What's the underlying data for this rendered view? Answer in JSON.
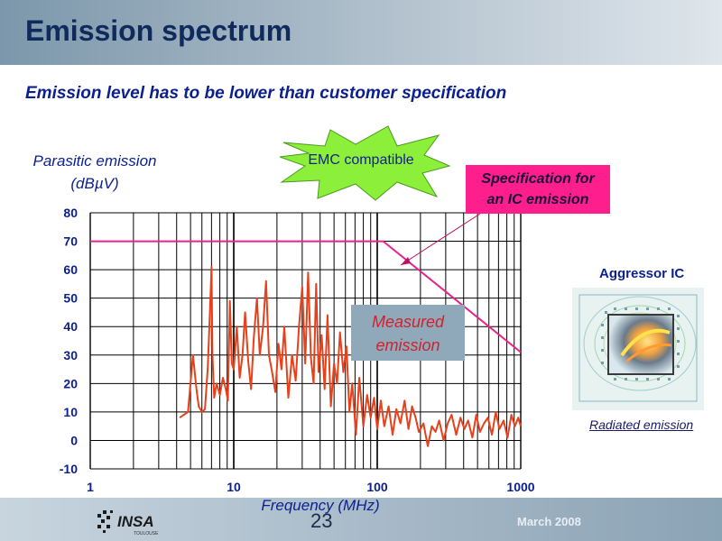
{
  "slide": {
    "title": "Emission spectrum",
    "subtitle": "Emission level has to be lower than customer specification",
    "page_number": "23",
    "date": "March 2008",
    "logo_text": "INSA",
    "logo_subtext": "TOULOUSE"
  },
  "annotations": {
    "emc_label": "EMC compatible",
    "spec_line1": "Specification for",
    "spec_line2": "an IC  emission",
    "measured_line1": "Measured",
    "measured_line2": "emission",
    "aggressor_title": "Aggressor IC",
    "radiated_label": "Radiated emission"
  },
  "colors": {
    "spec_line": "#e8238c",
    "measured_line": "#e8401a",
    "spec_box": "#ff1f8c",
    "measured_box": "#8fa9bb",
    "burst": "#8cf03a"
  },
  "chart_data": {
    "type": "line",
    "xlabel": "Frequency (MHz)",
    "ylabel_line1": "Parasitic emission",
    "ylabel_line2": "(dBµV)",
    "x_scale": "log",
    "xlim": [
      1,
      1000
    ],
    "ylim": [
      -10,
      80
    ],
    "x_ticks": [
      {
        "value": 1,
        "label": "1"
      },
      {
        "value": 10,
        "label": "10"
      },
      {
        "value": 100,
        "label": "100"
      },
      {
        "value": 1000,
        "label": "1000"
      }
    ],
    "y_ticks": [
      80,
      70,
      60,
      50,
      40,
      30,
      20,
      10,
      0,
      -10
    ],
    "grid": true,
    "series": [
      {
        "name": "Specification for an IC  emission",
        "x": [
          1,
          110,
          1000
        ],
        "y": [
          70,
          70,
          31
        ]
      },
      {
        "name": "Measured emission",
        "x": [
          4.2,
          4.8,
          5.2,
          5.5,
          5.7,
          6.0,
          6.3,
          6.6,
          6.9,
          7.0,
          7.1,
          7.3,
          7.6,
          8.0,
          8.4,
          8.8,
          9.1,
          9.4,
          9.7,
          10.0,
          10.5,
          11.0,
          11.5,
          12.0,
          12.6,
          13.2,
          13.8,
          14.5,
          15.2,
          16.0,
          16.8,
          17.6,
          18.5,
          19.5,
          20.5,
          21.5,
          22.5,
          24.0,
          25.5,
          27.0,
          28.5,
          30.0,
          31.5,
          33.0,
          34.5,
          36.0,
          37.5,
          39.0,
          41.0,
          43.0,
          45.0,
          47.5,
          50.0,
          52.5,
          55.0,
          58.0,
          61.0,
          64.0,
          67.0,
          71.0,
          75.0,
          80.0,
          85.0,
          90.0,
          95.0,
          100.0,
          106,
          112,
          120,
          128,
          136,
          145,
          155,
          165,
          175,
          185,
          195,
          210,
          225,
          240,
          255,
          270,
          290,
          310,
          330,
          355,
          380,
          405,
          430,
          460,
          490,
          520,
          555,
          590,
          630,
          670,
          710,
          760,
          810,
          860,
          910,
          960,
          1000
        ],
        "y": [
          8,
          10,
          30,
          18,
          12,
          10,
          11,
          26,
          52,
          61,
          30,
          15,
          20,
          16,
          22,
          18,
          14,
          49,
          27,
          25,
          40,
          22,
          30,
          45,
          28,
          18,
          36,
          50,
          30,
          40,
          56,
          30,
          24,
          17,
          34,
          25,
          40,
          15,
          30,
          21,
          40,
          54,
          27,
          59,
          29,
          20,
          55,
          24,
          37,
          18,
          44,
          12,
          27,
          20,
          38,
          24,
          33,
          10,
          20,
          2,
          22,
          5,
          16,
          8,
          15,
          4,
          14,
          5,
          12,
          2,
          11,
          6,
          14,
          4,
          12,
          8,
          3,
          6,
          -2,
          5,
          3,
          7,
          0,
          6,
          9,
          2,
          8,
          4,
          7,
          1,
          9,
          3,
          6,
          8,
          2,
          10,
          4,
          7,
          1,
          9,
          5,
          8,
          5
        ]
      }
    ]
  }
}
